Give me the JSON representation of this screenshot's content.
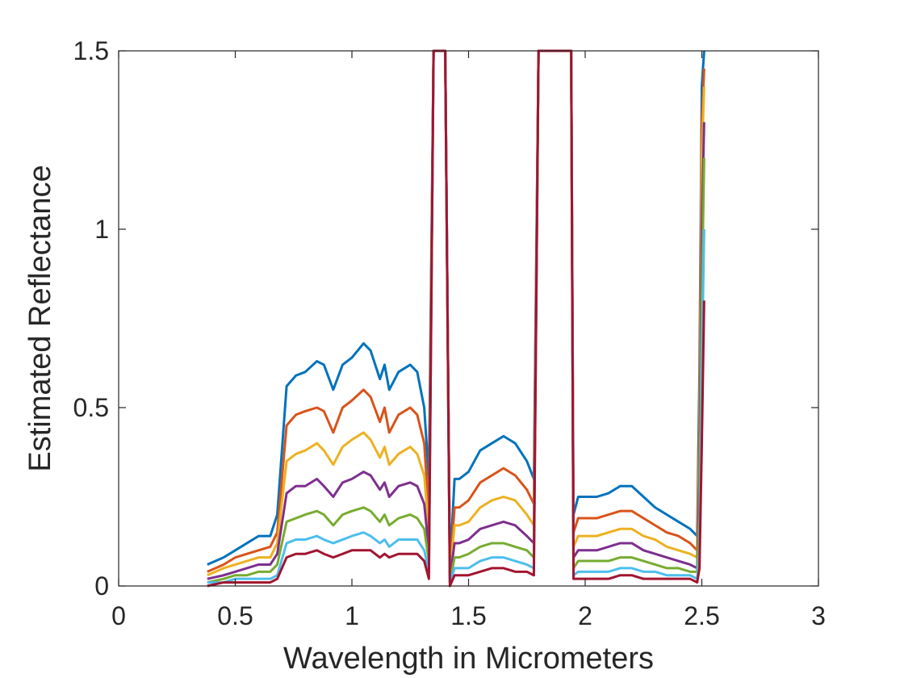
{
  "chart_data": {
    "type": "line",
    "title": "",
    "xlabel": "Wavelength in Micrometers",
    "ylabel": "Estimated Reflectance",
    "xlim": [
      0,
      3
    ],
    "ylim": [
      0,
      1.5
    ],
    "xticks": [
      0,
      0.5,
      1,
      1.5,
      2,
      2.5,
      3
    ],
    "xtick_labels": [
      "0",
      "0.5",
      "1",
      "1.5",
      "2",
      "2.5",
      "3"
    ],
    "yticks": [
      0,
      0.5,
      1,
      1.5
    ],
    "ytick_labels": [
      "0",
      "0.5",
      "1",
      "1.5"
    ],
    "grid": false,
    "legend": "none",
    "colors": [
      "#0072BD",
      "#D95319",
      "#EDB120",
      "#7E2F8E",
      "#77AC30",
      "#4DBEEE",
      "#A2142F"
    ],
    "x": [
      0.38,
      0.45,
      0.5,
      0.55,
      0.6,
      0.65,
      0.68,
      0.72,
      0.76,
      0.8,
      0.85,
      0.88,
      0.92,
      0.96,
      1.0,
      1.05,
      1.08,
      1.12,
      1.14,
      1.16,
      1.2,
      1.25,
      1.28,
      1.31,
      1.33,
      1.35,
      1.36,
      1.38,
      1.4,
      1.42,
      1.44,
      1.46,
      1.5,
      1.55,
      1.6,
      1.65,
      1.7,
      1.75,
      1.78,
      1.8,
      1.81,
      1.83,
      1.85,
      1.88,
      1.9,
      1.92,
      1.94,
      1.95,
      1.97,
      2.0,
      2.05,
      2.1,
      2.15,
      2.2,
      2.25,
      2.3,
      2.35,
      2.4,
      2.45,
      2.48,
      2.49,
      2.5,
      2.51
    ],
    "series": [
      {
        "values": [
          0.06,
          0.08,
          0.1,
          0.12,
          0.14,
          0.14,
          0.2,
          0.56,
          0.59,
          0.6,
          0.63,
          0.62,
          0.55,
          0.62,
          0.64,
          0.68,
          0.66,
          0.58,
          0.62,
          0.55,
          0.6,
          0.62,
          0.6,
          0.5,
          0.3,
          1.5,
          1.5,
          1.5,
          1.5,
          0.05,
          0.3,
          0.3,
          0.32,
          0.38,
          0.4,
          0.42,
          0.4,
          0.35,
          0.3,
          1.5,
          1.5,
          1.5,
          1.5,
          1.5,
          1.5,
          1.5,
          1.5,
          0.2,
          0.25,
          0.25,
          0.25,
          0.26,
          0.28,
          0.28,
          0.25,
          0.22,
          0.2,
          0.18,
          0.16,
          0.14,
          0.6,
          1.4,
          1.5
        ]
      },
      {
        "values": [
          0.04,
          0.06,
          0.08,
          0.09,
          0.1,
          0.11,
          0.15,
          0.45,
          0.48,
          0.49,
          0.5,
          0.49,
          0.43,
          0.5,
          0.52,
          0.55,
          0.53,
          0.46,
          0.5,
          0.43,
          0.48,
          0.5,
          0.48,
          0.4,
          0.2,
          1.5,
          1.5,
          1.5,
          1.5,
          0.04,
          0.22,
          0.22,
          0.24,
          0.29,
          0.31,
          0.33,
          0.31,
          0.27,
          0.23,
          1.5,
          1.5,
          1.5,
          1.5,
          1.5,
          1.5,
          1.5,
          1.5,
          0.15,
          0.19,
          0.19,
          0.19,
          0.2,
          0.21,
          0.21,
          0.19,
          0.17,
          0.15,
          0.14,
          0.12,
          0.1,
          0.5,
          1.3,
          1.45
        ]
      },
      {
        "values": [
          0.03,
          0.05,
          0.06,
          0.07,
          0.08,
          0.08,
          0.12,
          0.35,
          0.37,
          0.38,
          0.4,
          0.38,
          0.34,
          0.39,
          0.41,
          0.43,
          0.41,
          0.36,
          0.39,
          0.34,
          0.37,
          0.39,
          0.37,
          0.31,
          0.15,
          1.5,
          1.5,
          1.5,
          1.5,
          0.03,
          0.17,
          0.17,
          0.18,
          0.22,
          0.24,
          0.25,
          0.24,
          0.2,
          0.17,
          1.5,
          1.5,
          1.5,
          1.5,
          1.5,
          1.5,
          1.5,
          1.5,
          0.11,
          0.14,
          0.14,
          0.14,
          0.15,
          0.16,
          0.16,
          0.14,
          0.13,
          0.11,
          0.1,
          0.09,
          0.08,
          0.4,
          1.2,
          1.4
        ]
      },
      {
        "values": [
          0.02,
          0.03,
          0.04,
          0.05,
          0.06,
          0.06,
          0.09,
          0.26,
          0.28,
          0.28,
          0.3,
          0.28,
          0.25,
          0.29,
          0.3,
          0.32,
          0.31,
          0.27,
          0.29,
          0.25,
          0.28,
          0.29,
          0.28,
          0.23,
          0.1,
          1.5,
          1.5,
          1.5,
          1.5,
          0.02,
          0.12,
          0.12,
          0.13,
          0.16,
          0.17,
          0.18,
          0.17,
          0.14,
          0.12,
          1.5,
          1.5,
          1.5,
          1.5,
          1.5,
          1.5,
          1.5,
          1.5,
          0.08,
          0.1,
          0.1,
          0.1,
          0.11,
          0.12,
          0.12,
          0.1,
          0.09,
          0.08,
          0.07,
          0.06,
          0.05,
          0.3,
          1.0,
          1.3
        ]
      },
      {
        "values": [
          0.01,
          0.02,
          0.03,
          0.03,
          0.04,
          0.04,
          0.06,
          0.18,
          0.19,
          0.2,
          0.21,
          0.2,
          0.17,
          0.2,
          0.21,
          0.22,
          0.21,
          0.18,
          0.2,
          0.17,
          0.19,
          0.2,
          0.19,
          0.16,
          0.07,
          1.5,
          1.5,
          1.5,
          1.5,
          0.01,
          0.08,
          0.08,
          0.09,
          0.11,
          0.12,
          0.12,
          0.11,
          0.1,
          0.08,
          1.5,
          1.5,
          1.5,
          1.5,
          1.5,
          1.5,
          1.5,
          1.5,
          0.05,
          0.07,
          0.07,
          0.07,
          0.07,
          0.08,
          0.08,
          0.07,
          0.06,
          0.05,
          0.05,
          0.04,
          0.04,
          0.2,
          0.8,
          1.2
        ]
      },
      {
        "values": [
          0.01,
          0.01,
          0.02,
          0.02,
          0.02,
          0.02,
          0.03,
          0.12,
          0.13,
          0.13,
          0.14,
          0.13,
          0.12,
          0.13,
          0.14,
          0.15,
          0.14,
          0.12,
          0.13,
          0.11,
          0.13,
          0.13,
          0.13,
          0.1,
          0.04,
          1.5,
          1.5,
          1.5,
          1.5,
          0.01,
          0.05,
          0.05,
          0.05,
          0.07,
          0.08,
          0.08,
          0.07,
          0.06,
          0.05,
          1.5,
          1.5,
          1.5,
          1.5,
          1.5,
          1.5,
          1.5,
          1.5,
          0.03,
          0.04,
          0.04,
          0.04,
          0.04,
          0.05,
          0.05,
          0.04,
          0.04,
          0.03,
          0.03,
          0.03,
          0.02,
          0.1,
          0.6,
          1.0
        ]
      },
      {
        "values": [
          0.0,
          0.01,
          0.01,
          0.01,
          0.01,
          0.01,
          0.02,
          0.08,
          0.09,
          0.09,
          0.1,
          0.09,
          0.08,
          0.09,
          0.1,
          0.1,
          0.1,
          0.08,
          0.09,
          0.08,
          0.09,
          0.09,
          0.09,
          0.07,
          0.02,
          1.5,
          1.5,
          1.5,
          1.5,
          0.0,
          0.03,
          0.03,
          0.03,
          0.04,
          0.05,
          0.05,
          0.04,
          0.04,
          0.03,
          1.5,
          1.5,
          1.5,
          1.5,
          1.5,
          1.5,
          1.5,
          1.5,
          0.02,
          0.02,
          0.02,
          0.02,
          0.02,
          0.03,
          0.03,
          0.02,
          0.02,
          0.02,
          0.02,
          0.02,
          0.01,
          0.05,
          0.4,
          0.8
        ]
      }
    ]
  }
}
